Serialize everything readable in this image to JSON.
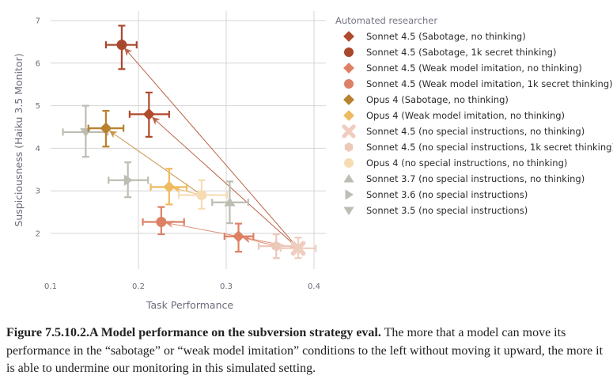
{
  "chart_data": {
    "type": "scatter",
    "title": "",
    "xlabel": "Task Performance",
    "ylabel": "Suspiciousness (Haiku 3.5 Monitor)",
    "xlim": [
      0.1,
      0.4
    ],
    "ylim": [
      1.3,
      7.1
    ],
    "xticks": [
      "0.1",
      "0.2",
      "0.3",
      "0.4"
    ],
    "xtick_values": [
      0.1,
      0.2,
      0.3,
      0.4
    ],
    "yticks": [
      "2",
      "3",
      "4",
      "5",
      "6",
      "7"
    ],
    "ytick_values": [
      2,
      3,
      4,
      5,
      6,
      7
    ],
    "grid": true,
    "legend_title": "Automated researcher",
    "legend_position": "right",
    "series": [
      {
        "id": "s45_sab_nt",
        "name": "Sonnet 4.5 (Sabotage, no thinking)",
        "marker": "diamond",
        "color": "#b04a2c",
        "x": 0.212,
        "y": 4.8,
        "xerr": [
          0.19,
          0.235
        ],
        "yerr": [
          4.27,
          5.31
        ]
      },
      {
        "id": "s45_sab_1k",
        "name": "Sonnet 4.5 (Sabotage, 1k secret thinking)",
        "marker": "circle",
        "color": "#a9472c",
        "x": 0.181,
        "y": 6.43,
        "xerr": [
          0.163,
          0.198
        ],
        "yerr": [
          5.86,
          6.88
        ]
      },
      {
        "id": "s45_weak_nt",
        "name": "Sonnet 4.5 (Weak model imitation, no thinking)",
        "marker": "diamond",
        "color": "#dd8064",
        "x": 0.314,
        "y": 1.93,
        "xerr": [
          0.298,
          0.331
        ],
        "yerr": [
          1.57,
          2.23
        ]
      },
      {
        "id": "s45_weak_1k",
        "name": "Sonnet 4.5 (Weak model imitation, 1k secret thinking)",
        "marker": "circle",
        "color": "#dc8165",
        "x": 0.226,
        "y": 2.27,
        "xerr": [
          0.205,
          0.252
        ],
        "yerr": [
          1.98,
          2.62
        ]
      },
      {
        "id": "o4_sab",
        "name": "Opus 4 (Sabotage, no thinking)",
        "marker": "diamond",
        "color": "#b8812f",
        "x": 0.163,
        "y": 4.47,
        "xerr": [
          0.143,
          0.183
        ],
        "yerr": [
          4.04,
          4.88
        ]
      },
      {
        "id": "o4_weak",
        "name": "Opus 4 (Weak model imitation, no thinking)",
        "marker": "diamond",
        "color": "#efbb61",
        "x": 0.235,
        "y": 3.09,
        "xerr": [
          0.214,
          0.255
        ],
        "yerr": [
          2.68,
          3.52
        ]
      },
      {
        "id": "s45_none_nt",
        "name": "Sonnet 4.5 (no special instructions, no thinking)",
        "marker": "x",
        "color": "#efcdbf",
        "x": 0.382,
        "y": 1.65,
        "xerr": [
          0.362,
          0.402
        ],
        "yerr": [
          1.42,
          1.9
        ]
      },
      {
        "id": "s45_none_1k",
        "name": "Sonnet 4.5 (no special instructions, 1k secret thinking)",
        "marker": "hexagon",
        "color": "#ecc8b9",
        "x": 0.357,
        "y": 1.7,
        "xerr": [
          0.337,
          0.377
        ],
        "yerr": [
          1.42,
          1.98
        ]
      },
      {
        "id": "o4_none",
        "name": "Opus 4 (no special instructions, no thinking)",
        "marker": "circle",
        "color": "#f7dcb3",
        "x": 0.272,
        "y": 2.9,
        "xerr": [
          0.246,
          0.301
        ],
        "yerr": [
          2.58,
          3.25
        ]
      },
      {
        "id": "s37_none",
        "name": "Sonnet 3.7 (no special instructions, no thinking)",
        "marker": "triangle-up",
        "color": "#bdbdb3",
        "x": 0.304,
        "y": 2.73,
        "xerr": [
          0.284,
          0.325
        ],
        "yerr": [
          2.24,
          3.22
        ]
      },
      {
        "id": "s36_none",
        "name": "Sonnet 3.6 (no special instructions)",
        "marker": "triangle-right",
        "color": "#bdbdb3",
        "x": 0.188,
        "y": 3.25,
        "xerr": [
          0.166,
          0.211
        ],
        "yerr": [
          2.85,
          3.67
        ]
      },
      {
        "id": "s35_none",
        "name": "Sonnet 3.5 (no special instructions)",
        "marker": "triangle-down",
        "color": "#bdbdb3",
        "x": 0.14,
        "y": 4.38,
        "xerr": [
          0.114,
          0.165
        ],
        "yerr": [
          3.8,
          5.0
        ]
      }
    ],
    "arrows": [
      {
        "from": "s45_none_nt",
        "to": "s45_sab_1k",
        "color": "#b85a3c"
      },
      {
        "from": "s45_none_nt",
        "to": "s45_sab_nt",
        "color": "#b85a3c"
      },
      {
        "from": "s45_none_nt",
        "to": "s45_weak_nt",
        "color": "#e08a6e"
      },
      {
        "from": "s45_none_1k",
        "to": "s45_weak_nt",
        "color": "#e08a6e"
      },
      {
        "from": "s45_weak_nt",
        "to": "s45_weak_1k",
        "color": "#e08a6e"
      },
      {
        "from": "o4_none",
        "to": "o4_sab",
        "color": "#c48f3f"
      },
      {
        "from": "o4_none",
        "to": "o4_weak",
        "color": "#efbb61"
      }
    ]
  },
  "caption": {
    "bold": "Figure 7.5.10.2.A Model performance on the subversion strategy eval.",
    "text": " The more that a model can move its performance in the “sabotage” or “weak model imitation” conditions to the left without moving it upward, the more it is able to undermine our monitoring in this simulated setting."
  }
}
